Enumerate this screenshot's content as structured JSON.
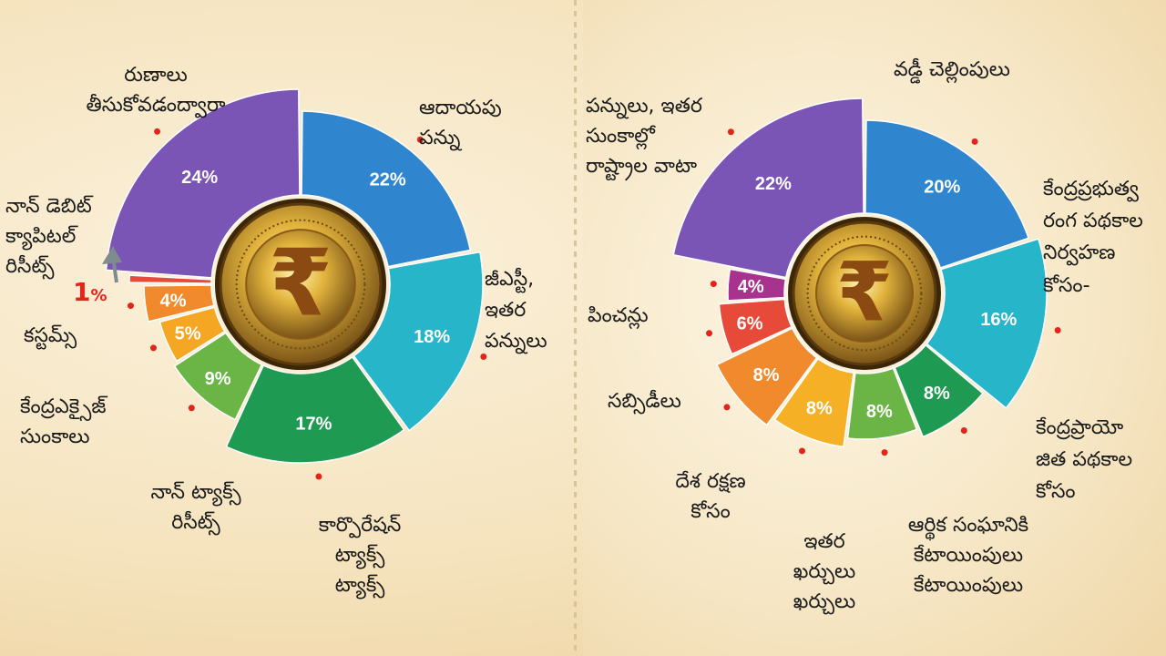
{
  "chart_data": [
    {
      "type": "pie",
      "categories": [
        "ఆదాయపు పన్ను",
        "జీఎస్టీ, ఇతర పన్నులు",
        "కార్పొరేషన్ ట్యాక్స్ ట్యాక్స్",
        "నాన్ ట్యాక్స్ రిసీట్స్",
        "కేంద్రఎక్సైజ్ సుంకాలు",
        "కస్టమ్స్",
        "నాన్ డెబిట్ క్యాపిటల్ రిసీట్స్",
        "రుణాలు తీసుకోవడంద్వారా"
      ],
      "values": [
        22,
        18,
        17,
        9,
        5,
        4,
        1,
        24
      ],
      "value_labels": [
        "22%",
        "18%",
        "17%",
        "9%",
        "5%",
        "4%",
        "1%",
        "24%"
      ],
      "colors": [
        "#2f86cf",
        "#27b5c9",
        "#1f9a52",
        "#6bb446",
        "#f5a623",
        "#f08a2c",
        "#e84a3a",
        "#7a55b5"
      ]
    },
    {
      "type": "pie",
      "categories": [
        "వడ్డీ చెల్లింపులు",
        "కేంద్రప్రభుత్వ రంగ పథకాల నిర్వహణ కోసం-",
        "కేంద్రప్రాయోజిత పథకాల కోసం",
        "ఆర్థిక సంఘానికి కేటాయింపులు కేటాయింపులు",
        "ఇతర ఖర్చులు ఖర్చులు",
        "దేశ రక్షణ కోసం",
        "సబ్సిడీలు",
        "పించన్లు",
        "పన్నులు, ఇతర సుంకాల్లో రాష్ట్రాల వాటా"
      ],
      "values": [
        20,
        16,
        8,
        8,
        8,
        8,
        6,
        4,
        22
      ],
      "value_labels": [
        "20%",
        "16%",
        "8%",
        "8%",
        "8%",
        "8%",
        "6%",
        "4%",
        "22%"
      ],
      "colors": [
        "#2f86cf",
        "#27b5c9",
        "#1f9a52",
        "#6bb446",
        "#f5b025",
        "#f08a2c",
        "#e84a3a",
        "#a8338f",
        "#7a55b5"
      ]
    }
  ],
  "left": {
    "labels": {
      "income_tax": "ఆదాయపు\nపన్ను",
      "gst": "జీఎస్టీ,\nఇతర\nపన్నులు",
      "corporation": "కార్పొరేషన్\nట్యాక్స్\nట్యాక్స్",
      "non_tax": "నాన్ ట్యాక్స్\nరిసీట్స్",
      "excise": "కేంద్రఎక్సైజ్\nసుంకాలు",
      "customs": "కస్టమ్స్",
      "non_debt": "నాన్ డెబిట్\nక్యాపిటల్\nరిసీట్స్",
      "non_debt_value": "1",
      "non_debt_unit": "%",
      "borrowings": "రుణాలు\nతీసుకోవడంద్వారా"
    }
  },
  "right": {
    "labels": {
      "interest": "వడ్డీ చెల్లింపులు",
      "central_sector": "కేంద్రప్రభుత్వ\nరంగ పథకాల\nనిర్వహణ\nకోసం-",
      "css": "కేంద్రప్రాయో\nజిత పథకాల\nకోసం",
      "finance_commission": "ఆర్థిక సంఘానికి\nకేటాయింపులు\nకేటాయింపులు",
      "other": "ఇతర\nఖర్చులు\nఖర్చులు",
      "defence": "దేశ రక్షణ\nకోసం",
      "subsidies": "సబ్సిడీలు",
      "pensions": "పించన్లు",
      "states_share": "పన్నులు, ఇతర\nసుంకాల్లో\nరాష్ట్రాల వాటా"
    }
  },
  "colors": {
    "coin_gold": "#e2b33c",
    "coin_dark": "#7a5418",
    "rupee": "#8a4a12",
    "pointer_red": "#e2241b"
  },
  "icons": [
    "rupee-coin-icon",
    "arrow-up-icon"
  ]
}
